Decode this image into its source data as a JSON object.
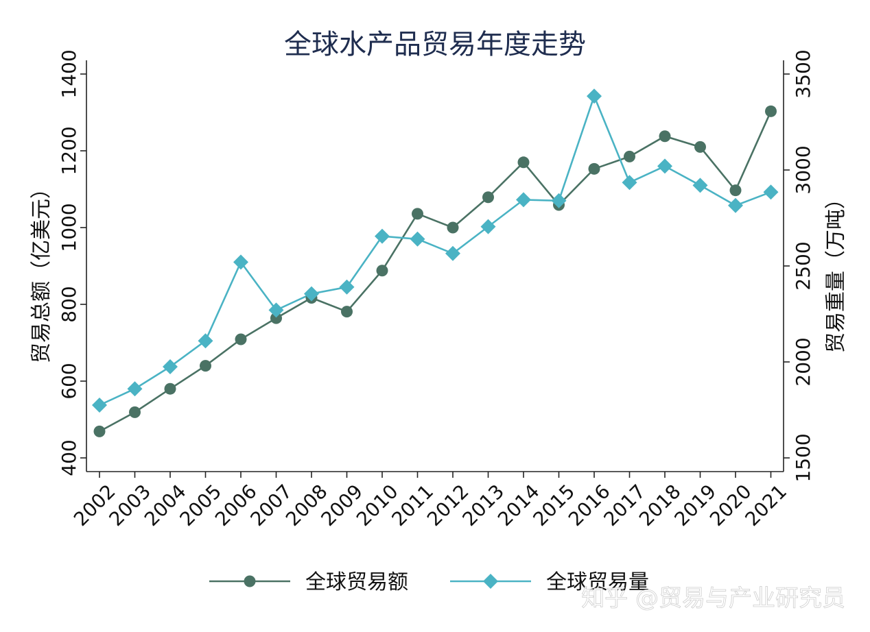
{
  "chart_data": {
    "type": "line",
    "title": "全球水产品贸易年度走势",
    "ylabel_left": "贸易总额（亿美元）",
    "ylabel_right": "贸易重量（万吨）",
    "x": [
      "2002",
      "2003",
      "2004",
      "2005",
      "2006",
      "2007",
      "2008",
      "2009",
      "2010",
      "2011",
      "2012",
      "2013",
      "2014",
      "2015",
      "2016",
      "2017",
      "2018",
      "2019",
      "2020",
      "2021"
    ],
    "ylim_left": [
      400,
      1400
    ],
    "yticks_left": [
      "400",
      "600",
      "800",
      "1000",
      "1200",
      "1400"
    ],
    "ylim_right": [
      1500,
      3500
    ],
    "yticks_right": [
      "1500",
      "2000",
      "2500",
      "3000",
      "3500"
    ],
    "series": [
      {
        "name": "全球贸易额",
        "axis": "left",
        "marker": "circle",
        "color": "#4a7264",
        "values": [
          469,
          519,
          580,
          640,
          709,
          764,
          817,
          781,
          888,
          1036,
          1000,
          1079,
          1170,
          1059,
          1153,
          1185,
          1238,
          1210,
          1097,
          1303
        ]
      },
      {
        "name": "全球贸易量",
        "axis": "right",
        "marker": "diamond",
        "color": "#4ab3c4",
        "values": [
          1775,
          1860,
          1975,
          2110,
          2520,
          2270,
          2355,
          2390,
          2655,
          2640,
          2565,
          2705,
          2845,
          2840,
          3385,
          2935,
          3020,
          2920,
          2815,
          2885
        ]
      }
    ]
  },
  "watermark": "知乎 @贸易与产业研究员"
}
